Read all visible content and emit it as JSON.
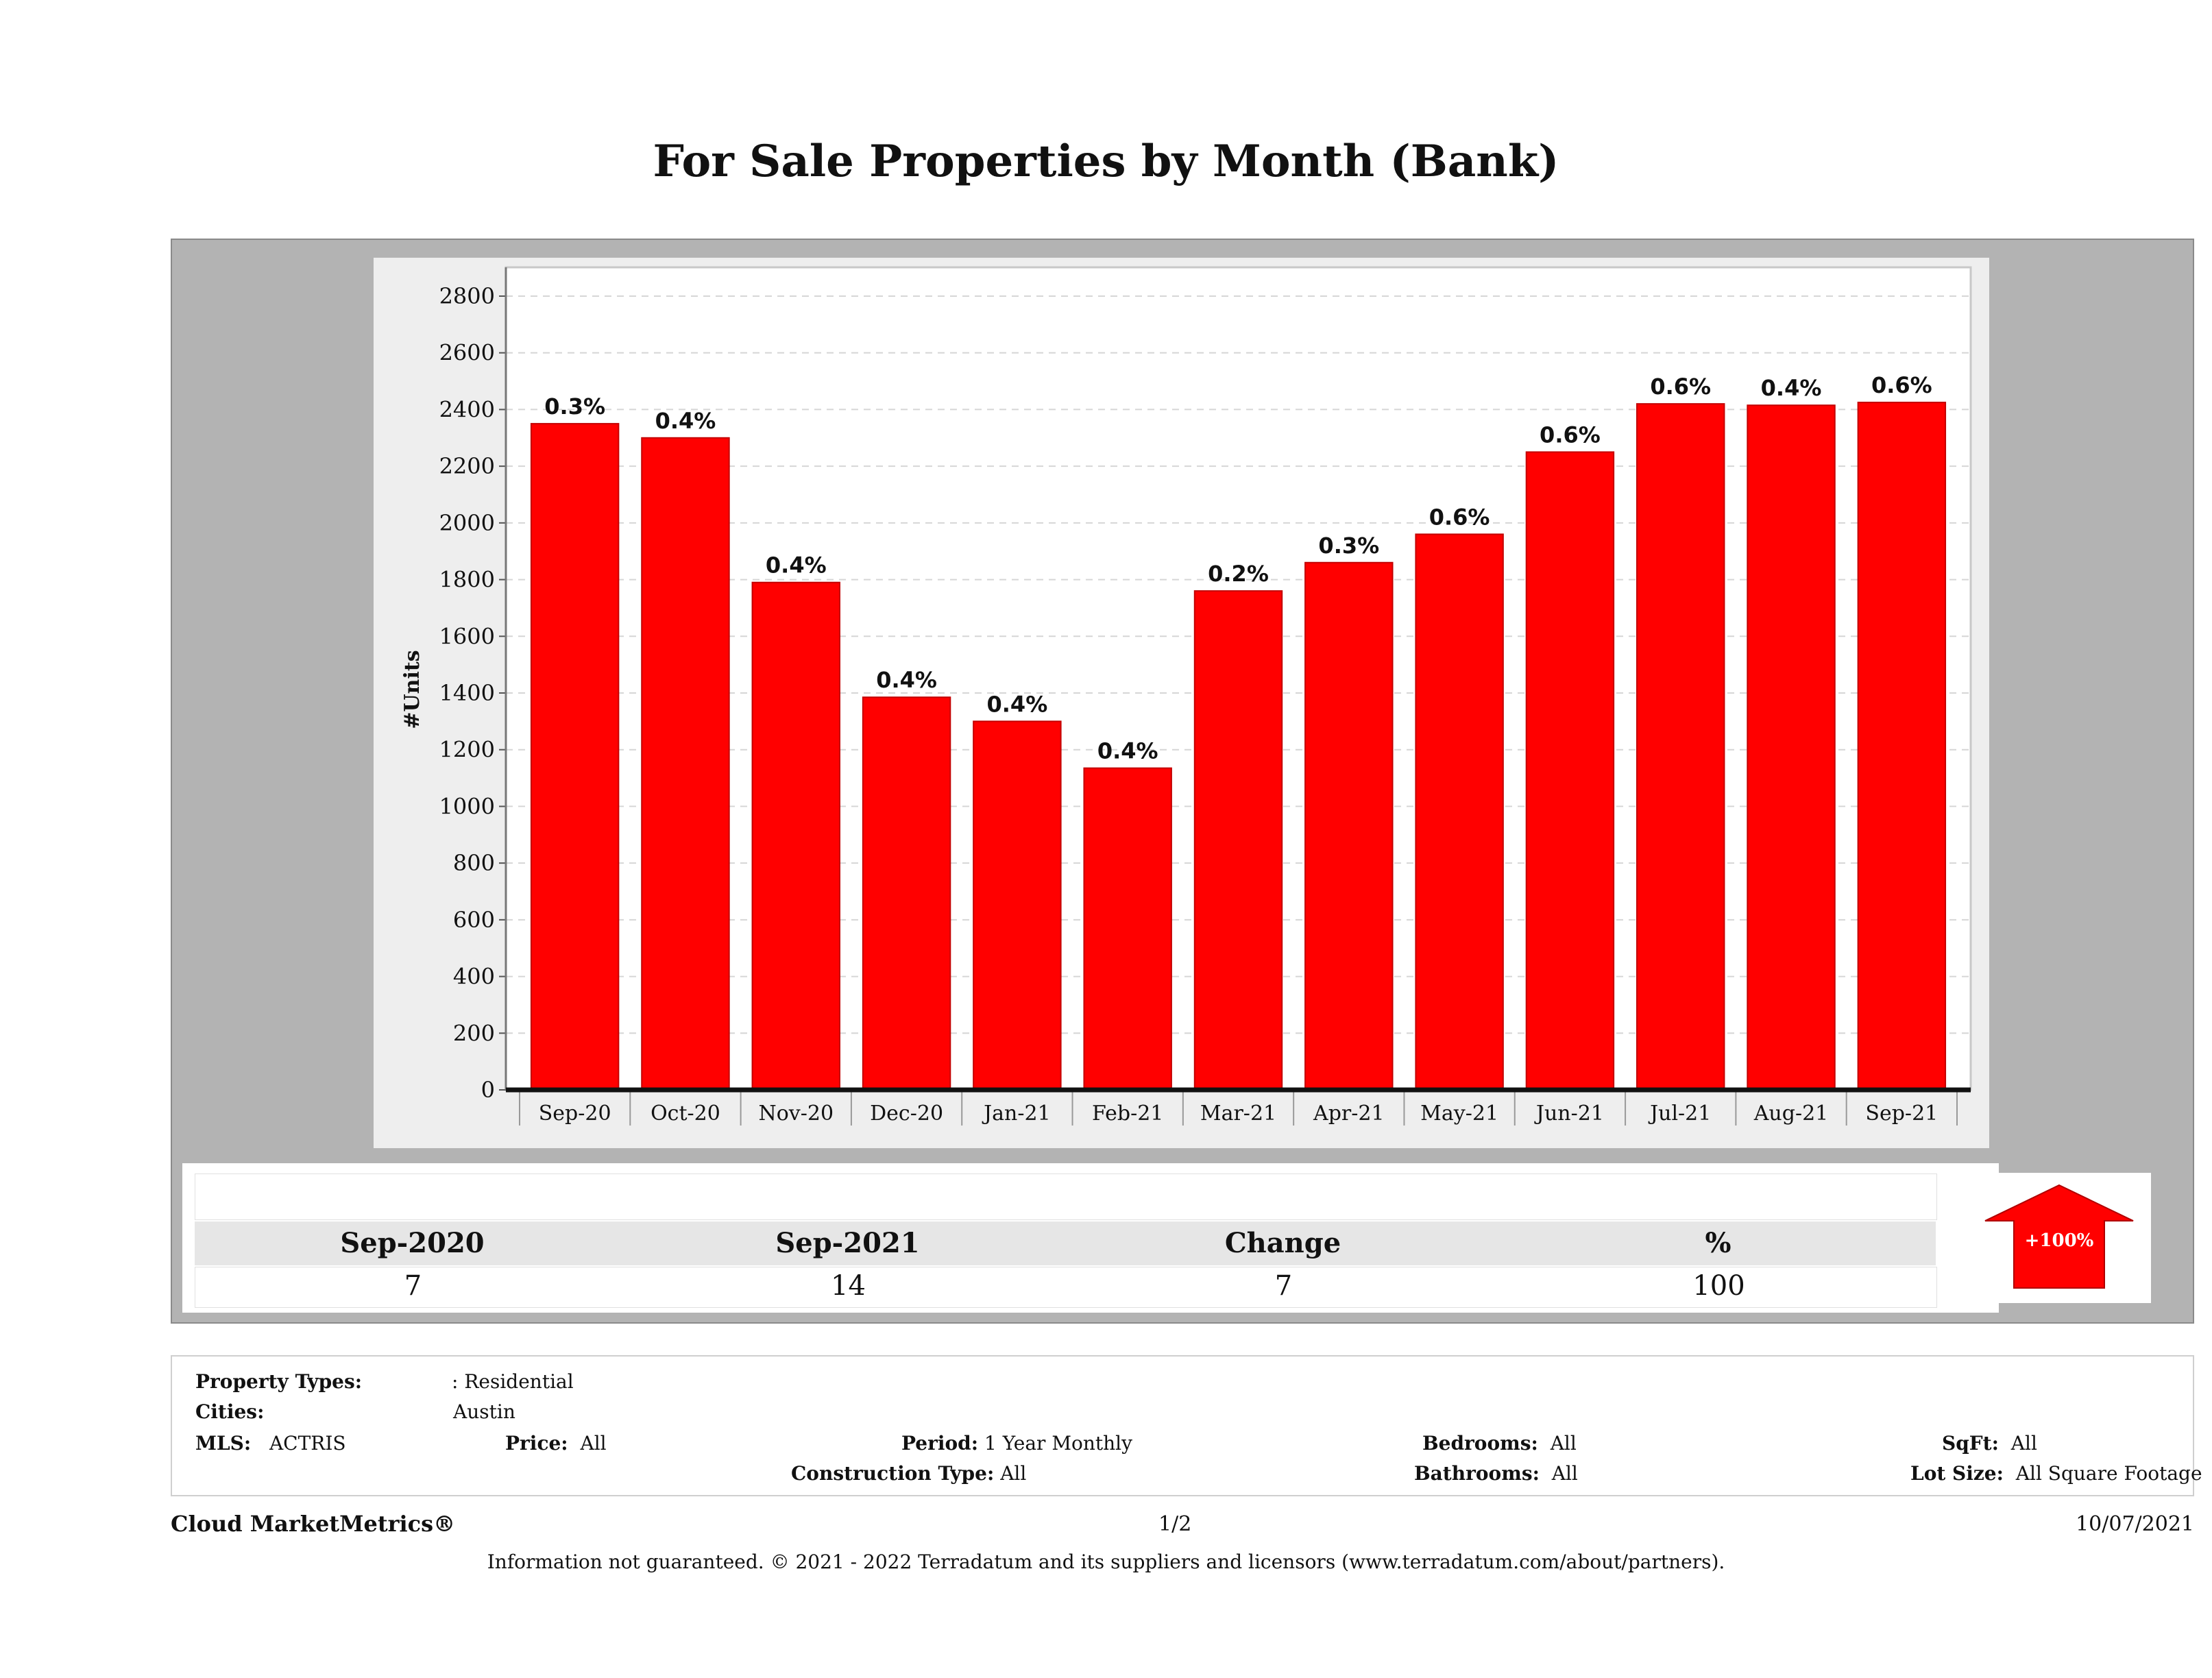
{
  "page": {
    "title": "For Sale Properties by Month (Bank)"
  },
  "chart_data": {
    "type": "bar",
    "title": "For Sale Properties by Month (Bank)",
    "ylabel": "#Units",
    "xlabel": "",
    "ylim": [
      0,
      2800
    ],
    "yticks": [
      0,
      200,
      400,
      600,
      800,
      1000,
      1200,
      1400,
      1600,
      1800,
      2000,
      2200,
      2400,
      2600,
      2800
    ],
    "categories": [
      "Sep-20",
      "Oct-20",
      "Nov-20",
      "Dec-20",
      "Jan-21",
      "Feb-21",
      "Mar-21",
      "Apr-21",
      "May-21",
      "Jun-21",
      "Jul-21",
      "Aug-21",
      "Sep-21"
    ],
    "values": [
      2350,
      2300,
      1790,
      1385,
      1300,
      1135,
      1760,
      1860,
      1960,
      2250,
      2420,
      2415,
      2425
    ],
    "data_labels": [
      "0.3%",
      "0.4%",
      "0.4%",
      "0.4%",
      "0.4%",
      "0.4%",
      "0.2%",
      "0.3%",
      "0.6%",
      "0.6%",
      "0.6%",
      "0.4%",
      "0.6%"
    ],
    "bar_color": "#ff0000",
    "grid": true
  },
  "summary": {
    "headers": [
      "Sep-2020",
      "Sep-2021",
      "Change",
      "%"
    ],
    "values": [
      "7",
      "14",
      "7",
      "100"
    ],
    "arrow_label": "+100%",
    "arrow_color": "#ff0000"
  },
  "criteria": {
    "property_types_label": "Property Types:",
    "property_types_value": ": Residential",
    "cities_label": "Cities:",
    "cities_value": "Austin",
    "mls_label": "MLS:",
    "mls_value": "ACTRIS",
    "price_label": "Price:",
    "price_value": "All",
    "period_label": "Period:",
    "period_value": "1 Year Monthly",
    "construction_label": "Construction Type:",
    "construction_value": "All",
    "bedrooms_label": "Bedrooms:",
    "bedrooms_value": "All",
    "bathrooms_label": "Bathrooms:",
    "bathrooms_value": "All",
    "sqft_label": "SqFt:",
    "sqft_value": "All",
    "lotsize_label": "Lot Size:",
    "lotsize_value": "All Square Footage"
  },
  "footer": {
    "brand": "Cloud MarketMetrics®",
    "page": "1/2",
    "date": "10/07/2021",
    "disclaimer": "Information not guaranteed. © 2021 - 2022 Terradatum and its suppliers and licensors (www.terradatum.com/about/partners)."
  }
}
